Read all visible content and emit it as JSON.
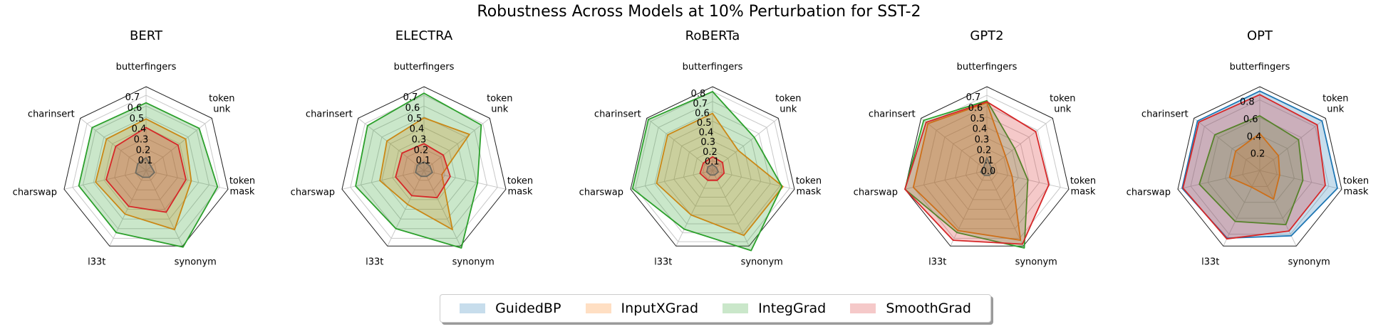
{
  "title": "Robustness Across Models at 10% Perturbation for SST-2",
  "chart_data": [
    {
      "type": "radar",
      "title": "BERT",
      "axes": [
        "butterfingers",
        "token unk",
        "token mask",
        "synonym",
        "l33t",
        "charswap",
        "charinsert"
      ],
      "rlim": [
        0,
        0.78
      ],
      "ticks": [
        "0.1",
        "0.2",
        "0.3",
        "0.4",
        "0.5",
        "0.6",
        "0.7"
      ],
      "tick_values": [
        0.1,
        0.2,
        0.3,
        0.4,
        0.5,
        0.6,
        0.7
      ],
      "series": [
        {
          "name": "GuidedBP",
          "values": [
            0.12,
            0.06,
            0.08,
            0.07,
            0.07,
            0.1,
            0.1
          ]
        },
        {
          "name": "InputXGrad",
          "values": [
            0.48,
            0.47,
            0.43,
            0.61,
            0.45,
            0.48,
            0.47
          ]
        },
        {
          "name": "IntegGrad",
          "values": [
            0.63,
            0.63,
            0.68,
            0.79,
            0.64,
            0.64,
            0.64
          ]
        },
        {
          "name": "SmoothGrad",
          "values": [
            0.4,
            0.38,
            0.38,
            0.43,
            0.37,
            0.38,
            0.36
          ]
        }
      ]
    },
    {
      "type": "radar",
      "title": "ELECTRA",
      "axes": [
        "butterfingers",
        "token unk",
        "token mask",
        "synonym",
        "l33t",
        "charswap",
        "charinsert"
      ],
      "rlim": [
        0,
        0.78
      ],
      "ticks": [
        "0.1",
        "0.2",
        "0.3",
        "0.4",
        "0.5",
        "0.6",
        "0.7"
      ],
      "tick_values": [
        0.1,
        0.2,
        0.3,
        0.4,
        0.5,
        0.6,
        0.7
      ],
      "series": [
        {
          "name": "GuidedBP",
          "values": [
            0.08,
            0.07,
            0.08,
            0.06,
            0.06,
            0.08,
            0.08
          ]
        },
        {
          "name": "InputXGrad",
          "values": [
            0.49,
            0.54,
            0.17,
            0.61,
            0.35,
            0.42,
            0.44
          ]
        },
        {
          "name": "IntegGrad",
          "values": [
            0.72,
            0.68,
            0.51,
            0.8,
            0.6,
            0.65,
            0.67
          ]
        },
        {
          "name": "SmoothGrad",
          "values": [
            0.25,
            0.23,
            0.25,
            0.28,
            0.26,
            0.27,
            0.26
          ]
        }
      ]
    },
    {
      "type": "radar",
      "title": "RoBERTa",
      "axes": [
        "butterfingers",
        "token unk",
        "token mask",
        "synonym",
        "l33t",
        "charswap",
        "charinsert"
      ],
      "rlim": [
        0,
        0.85
      ],
      "ticks": [
        "0.1",
        "0.2",
        "0.3",
        "0.4",
        "0.5",
        "0.6",
        "0.7",
        "0.8"
      ],
      "tick_values": [
        0.1,
        0.2,
        0.3,
        0.4,
        0.5,
        0.6,
        0.7,
        0.8
      ],
      "series": [
        {
          "name": "GuidedBP",
          "values": [
            0.06,
            0.05,
            0.06,
            0.05,
            0.05,
            0.06,
            0.06
          ]
        },
        {
          "name": "InputXGrad",
          "values": [
            0.58,
            0.33,
            0.73,
            0.73,
            0.5,
            0.58,
            0.58
          ]
        },
        {
          "name": "IntegGrad",
          "values": [
            0.8,
            0.54,
            0.72,
            0.9,
            0.66,
            0.83,
            0.83
          ]
        },
        {
          "name": "SmoothGrad",
          "values": [
            0.14,
            0.13,
            0.12,
            0.11,
            0.11,
            0.13,
            0.12
          ]
        }
      ]
    },
    {
      "type": "radar",
      "title": "GPT2",
      "axes": [
        "butterfingers",
        "token unk",
        "token mask",
        "synonym",
        "l33t",
        "charswap",
        "charinsert"
      ],
      "rlim": [
        0,
        0.78
      ],
      "ticks": [
        "0.0",
        "0.1",
        "0.2",
        "0.3",
        "0.4",
        "0.5",
        "0.6",
        "0.7"
      ],
      "tick_values": [
        0.0,
        0.1,
        0.2,
        0.3,
        0.4,
        0.5,
        0.6,
        0.7
      ],
      "series": [
        {
          "name": "GuidedBP",
          "values": [
            0.12,
            0.05,
            0.06,
            0.05,
            0.05,
            0.06,
            0.04
          ]
        },
        {
          "name": "InputXGrad",
          "values": [
            0.63,
            0.22,
            0.24,
            0.72,
            0.62,
            0.7,
            0.7
          ]
        },
        {
          "name": "IntegGrad",
          "values": [
            0.65,
            0.33,
            0.39,
            0.8,
            0.64,
            0.78,
            0.75
          ]
        },
        {
          "name": "SmoothGrad",
          "values": [
            0.64,
            0.58,
            0.59,
            0.76,
            0.72,
            0.78,
            0.72
          ]
        }
      ]
    },
    {
      "type": "radar",
      "title": "OPT",
      "axes": [
        "butterfingers",
        "token unk",
        "token mask",
        "synonym",
        "l33t",
        "charswap",
        "charinsert"
      ],
      "rlim": [
        0,
        0.95
      ],
      "ticks": [
        "0.2",
        "0.4",
        "0.6",
        "0.8"
      ],
      "tick_values": [
        0.2,
        0.4,
        0.6,
        0.8
      ],
      "series": [
        {
          "name": "GuidedBP",
          "values": [
            0.9,
            0.9,
            0.9,
            0.82,
            0.85,
            0.9,
            0.9
          ]
        },
        {
          "name": "InputXGrad",
          "values": [
            0.42,
            0.27,
            0.23,
            0.36,
            0.21,
            0.35,
            0.35
          ]
        },
        {
          "name": "IntegGrad",
          "values": [
            0.62,
            0.56,
            0.5,
            0.68,
            0.64,
            0.7,
            0.65
          ]
        },
        {
          "name": "SmoothGrad",
          "values": [
            0.86,
            0.83,
            0.76,
            0.76,
            0.86,
            0.89,
            0.88
          ]
        }
      ]
    }
  ],
  "legend": [
    {
      "label": "GuidedBP",
      "color": "#1f77b4"
    },
    {
      "label": "InputXGrad",
      "color": "#ff7f0e"
    },
    {
      "label": "IntegGrad",
      "color": "#2ca02c"
    },
    {
      "label": "SmoothGrad",
      "color": "#d62728"
    }
  ],
  "colors": {
    "GuidedBP": "#1f77b4",
    "InputXGrad": "#ff7f0e",
    "IntegGrad": "#2ca02c",
    "SmoothGrad": "#d62728"
  }
}
